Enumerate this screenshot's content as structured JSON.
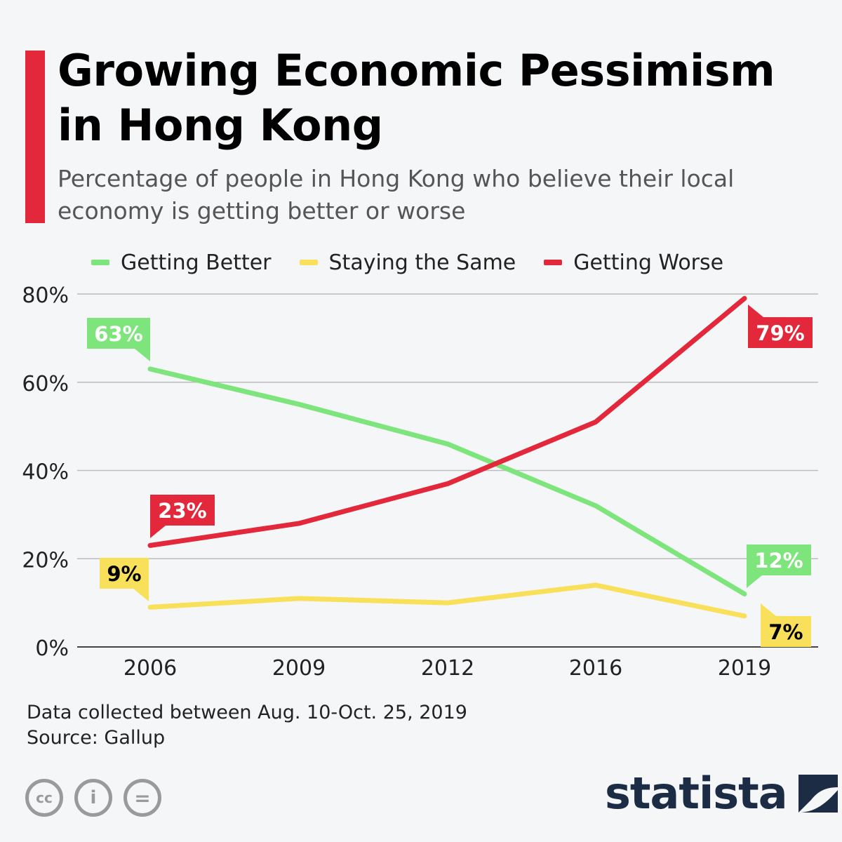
{
  "header": {
    "title": "Growing Economic Pessimism in Hong Kong",
    "subtitle": "Percentage of people in Hong Kong who believe their local economy is getting better or worse"
  },
  "colors": {
    "accent": "#e3283b",
    "getting_better": "#7de57c",
    "staying_same": "#f9e05a",
    "getting_worse": "#e3283b"
  },
  "chart_data": {
    "type": "line",
    "x": [
      "2006",
      "2009",
      "2012",
      "2016",
      "2019"
    ],
    "series": [
      {
        "name": "Getting Better",
        "values": [
          63,
          55,
          46,
          32,
          12
        ],
        "color": "#7de57c"
      },
      {
        "name": "Staying the Same",
        "values": [
          9,
          11,
          10,
          14,
          7
        ],
        "color": "#f9e05a"
      },
      {
        "name": "Getting Worse",
        "values": [
          23,
          28,
          37,
          51,
          79
        ],
        "color": "#e3283b"
      }
    ],
    "ylim": [
      0,
      80
    ],
    "yticks": [
      "0%",
      "20%",
      "40%",
      "60%",
      "80%"
    ],
    "ytick_values": [
      0,
      20,
      40,
      60,
      80
    ],
    "grid": true,
    "legend_position": "top",
    "annotations": [
      {
        "series": 0,
        "point": 0,
        "label": "63%"
      },
      {
        "series": 0,
        "point": 4,
        "label": "12%"
      },
      {
        "series": 1,
        "point": 0,
        "label": "9%"
      },
      {
        "series": 1,
        "point": 4,
        "label": "7%"
      },
      {
        "series": 2,
        "point": 0,
        "label": "23%"
      },
      {
        "series": 2,
        "point": 4,
        "label": "79%"
      }
    ]
  },
  "footer": {
    "note": "Data collected between Aug. 10-Oct. 25, 2019",
    "source": "Source: Gallup",
    "brand": "statista",
    "license_icons": [
      "cc-icon",
      "attribution-icon",
      "no-derivatives-icon"
    ],
    "license_glyphs": [
      "cc",
      "i",
      "="
    ]
  }
}
